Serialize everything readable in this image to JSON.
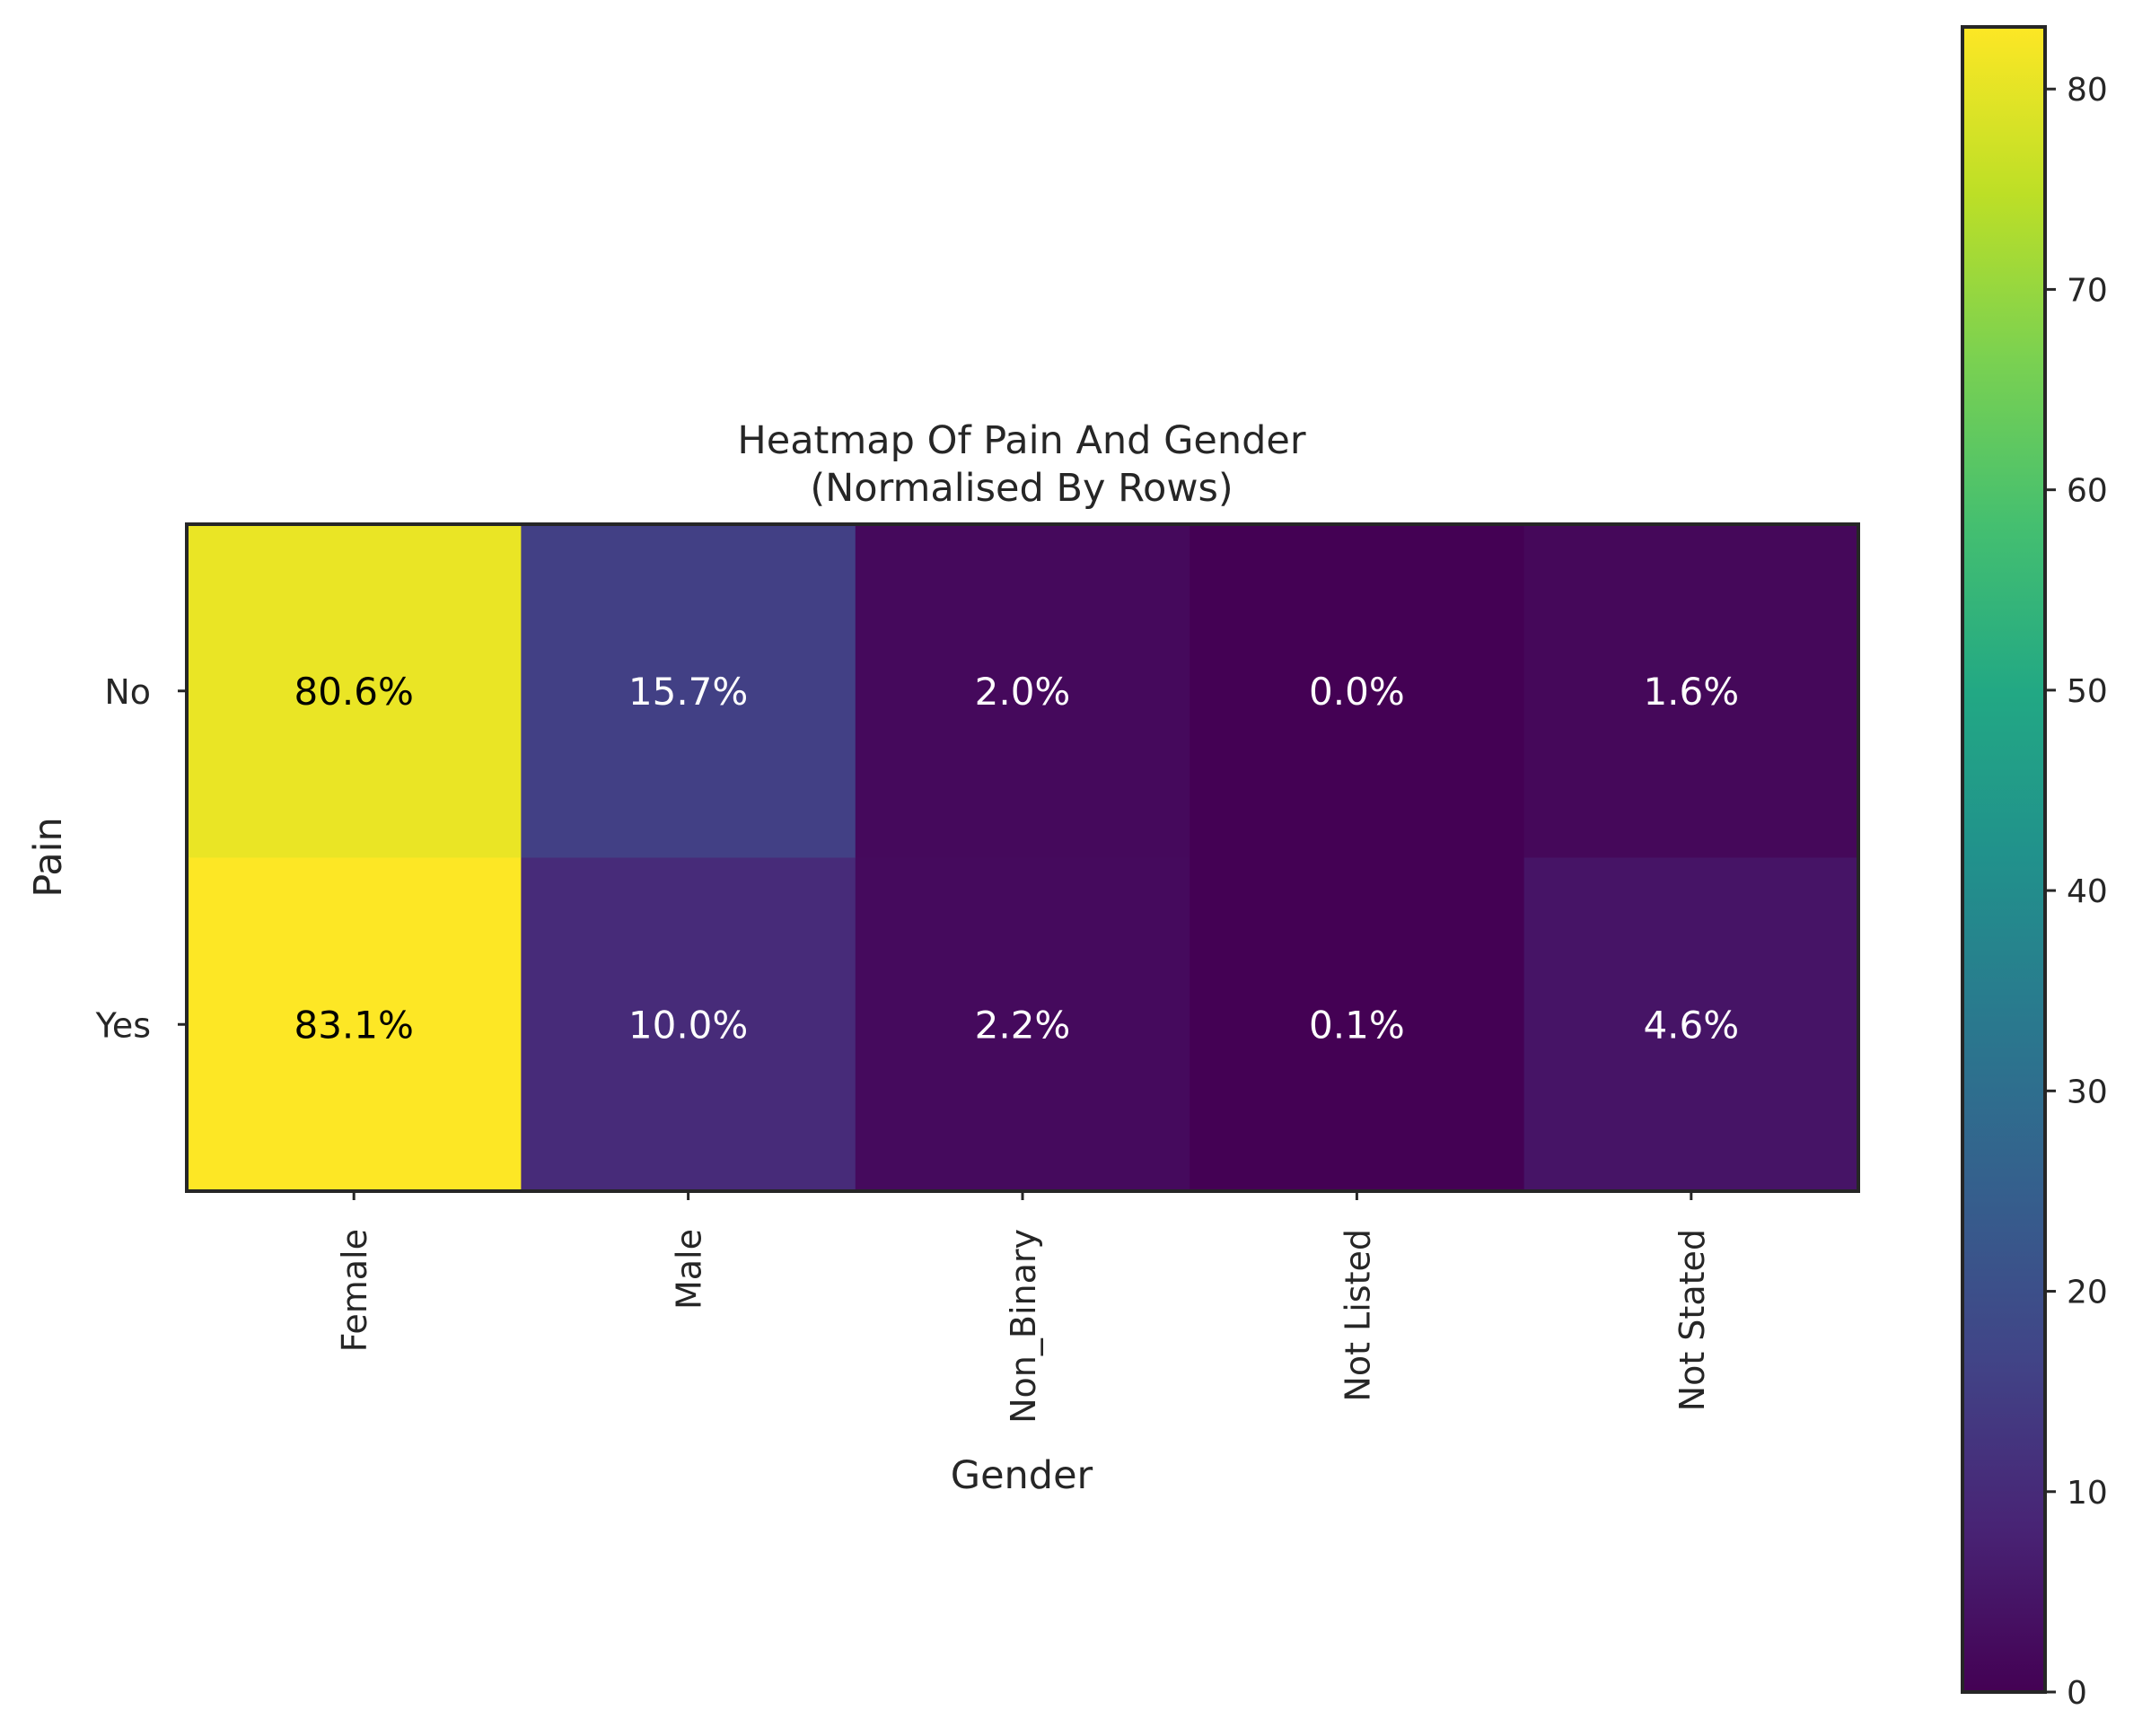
{
  "chart_data": {
    "type": "heatmap",
    "title": "Heatmap Of Pain And Gender\n(Normalised By Rows)",
    "title_lines": [
      "Heatmap Of Pain And Gender",
      "(Normalised By Rows)"
    ],
    "xlabel": "Gender",
    "ylabel": "Pain",
    "x_categories": [
      "Female",
      "Male",
      "Non_Binary",
      "Not Listed",
      "Not Stated"
    ],
    "y_categories": [
      "No",
      "Yes"
    ],
    "values": [
      [
        80.6,
        15.7,
        2.0,
        0.0,
        1.6
      ],
      [
        83.1,
        10.0,
        2.2,
        0.1,
        4.6
      ]
    ],
    "cell_labels": [
      [
        "80.6%",
        "15.7%",
        "2.0%",
        "0.0%",
        "1.6%"
      ],
      [
        "83.1%",
        "10.0%",
        "2.2%",
        "0.1%",
        "4.6%"
      ]
    ],
    "colormap": "viridis",
    "colorbar": {
      "vmin": 0,
      "vmax": 83.1,
      "ticks": [
        0,
        10,
        20,
        30,
        40,
        50,
        60,
        70,
        80
      ],
      "tick_labels": [
        "0",
        "10",
        "20",
        "30",
        "40",
        "50",
        "60",
        "70",
        "80"
      ]
    }
  }
}
